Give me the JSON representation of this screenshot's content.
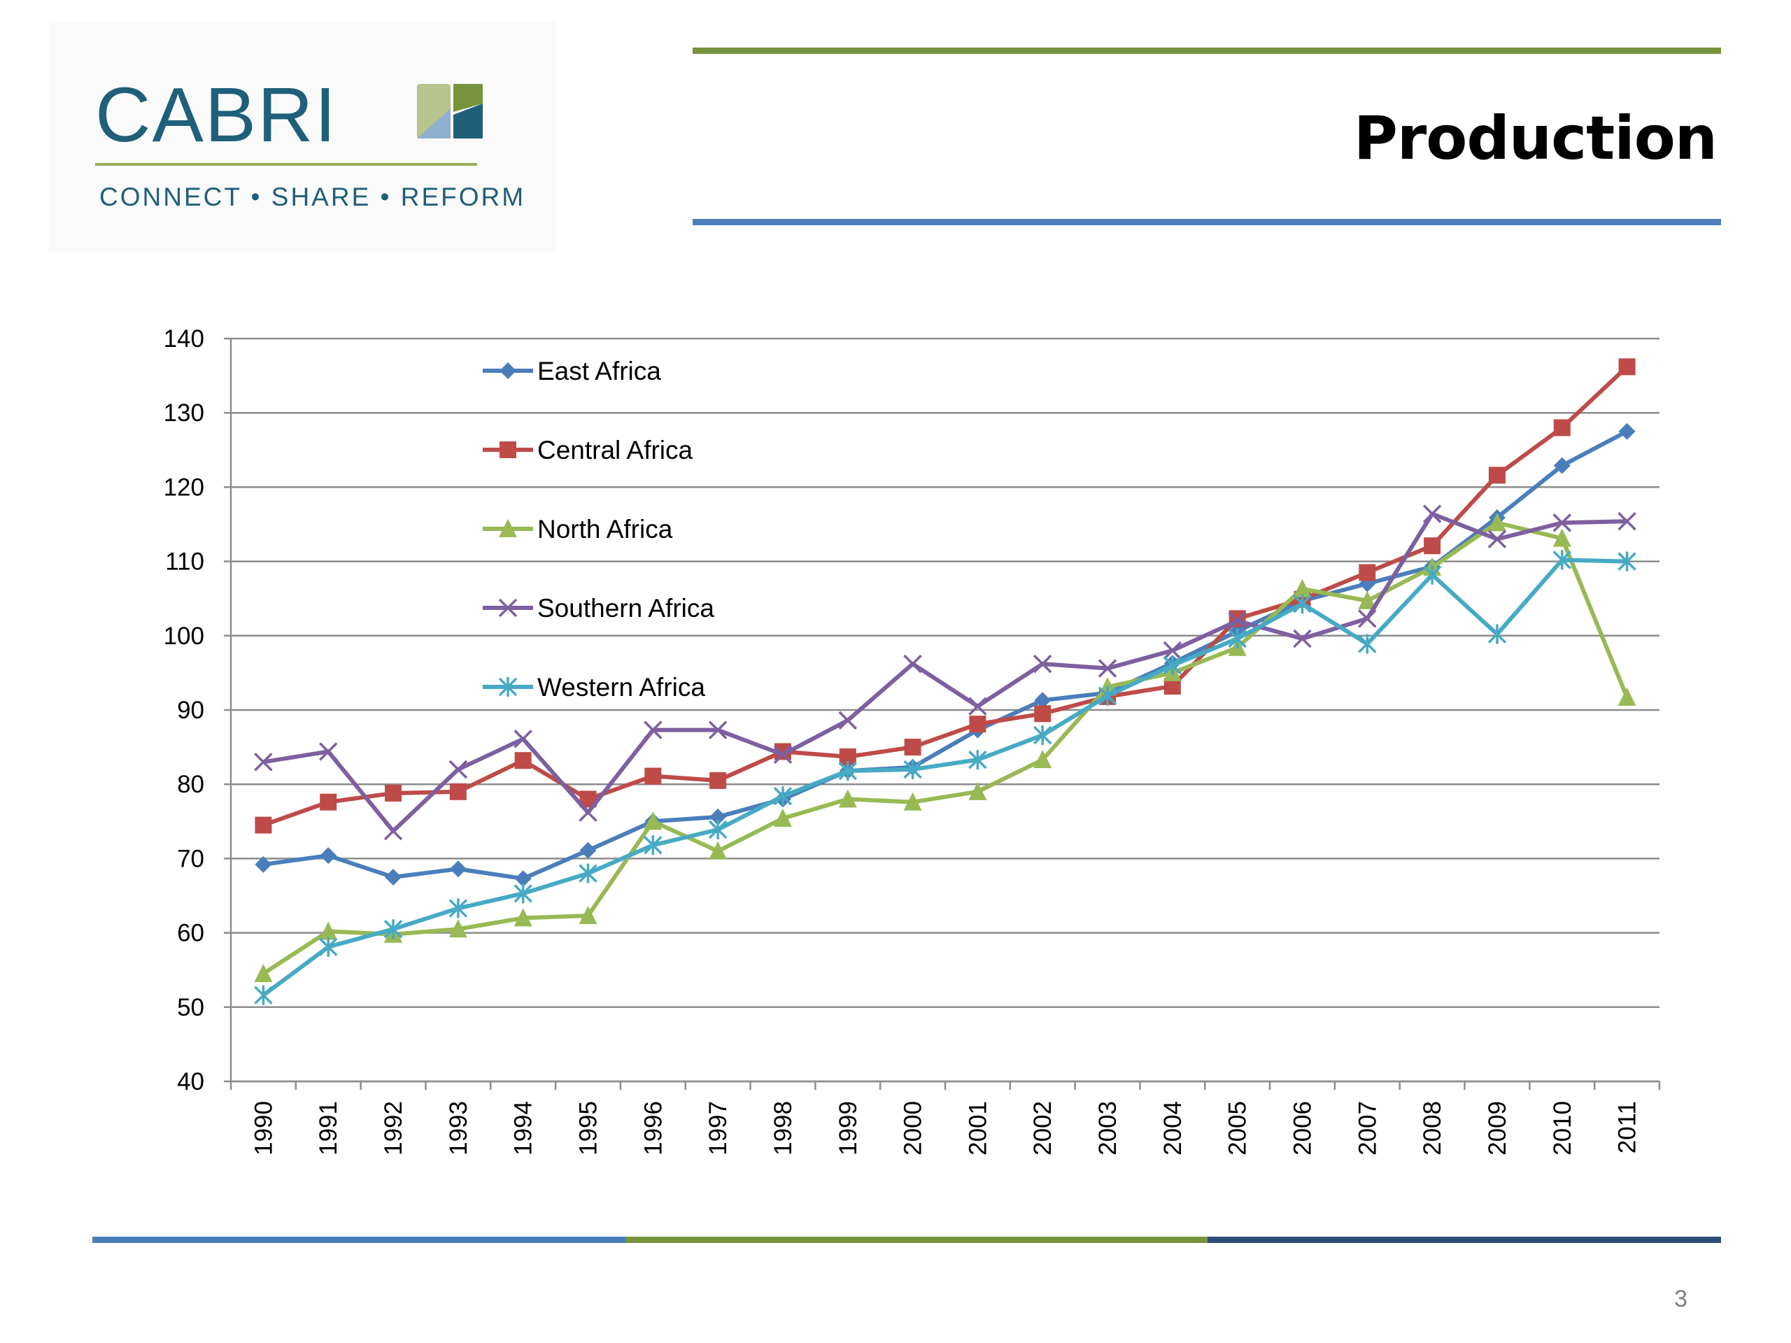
{
  "header": {
    "title": "Production",
    "page_number": "3",
    "logo": {
      "wordmark": "CABRI",
      "tagline": "CONNECT • SHARE • REFORM"
    },
    "colors": {
      "green": "#77933c",
      "blue": "#4a7ebb",
      "navy": "#2c4d75",
      "logo_teal": "#1f5f7a"
    }
  },
  "chart_data": {
    "type": "line",
    "title": "",
    "xlabel": "",
    "ylabel": "",
    "categories": [
      "1990",
      "1991",
      "1992",
      "1993",
      "1994",
      "1995",
      "1996",
      "1997",
      "1998",
      "1999",
      "2000",
      "2001",
      "2002",
      "2003",
      "2004",
      "2005",
      "2006",
      "2007",
      "2008",
      "2009",
      "2010",
      "2011"
    ],
    "ylim": [
      40,
      140
    ],
    "yticks": [
      40,
      50,
      60,
      70,
      80,
      90,
      100,
      110,
      120,
      130,
      140
    ],
    "grid": true,
    "legend_position": "top-left inside",
    "series": [
      {
        "name": "East Africa",
        "color": "#4a7ebb",
        "marker": "diamond",
        "values": [
          69.2,
          70.4,
          67.5,
          68.6,
          67.3,
          71.1,
          75.0,
          75.6,
          78.0,
          81.8,
          82.3,
          87.3,
          91.3,
          92.3,
          96.3,
          100.6,
          104.7,
          107.0,
          109.3,
          115.9,
          122.9,
          127.5
        ]
      },
      {
        "name": "Central Africa",
        "color": "#be4b48",
        "marker": "square",
        "values": [
          74.5,
          77.6,
          78.8,
          79.0,
          83.2,
          78.0,
          81.1,
          80.5,
          84.4,
          83.7,
          85.0,
          88.1,
          89.5,
          91.8,
          93.2,
          102.3,
          104.9,
          108.5,
          112.1,
          121.6,
          128.0,
          136.2
        ]
      },
      {
        "name": "North Africa",
        "color": "#98b954",
        "marker": "triangle",
        "values": [
          54.5,
          60.2,
          59.8,
          60.5,
          62.0,
          62.3,
          75.0,
          71.0,
          75.4,
          78.0,
          77.6,
          79.0,
          83.3,
          93.1,
          95.0,
          98.4,
          106.3,
          104.7,
          109.2,
          115.2,
          113.1,
          91.7
        ]
      },
      {
        "name": "Southern Africa",
        "color": "#7d60a0",
        "marker": "x",
        "values": [
          83.0,
          84.4,
          73.7,
          82.0,
          86.1,
          76.2,
          87.3,
          87.3,
          84.0,
          88.6,
          96.2,
          90.5,
          96.2,
          95.6,
          98.0,
          102.0,
          99.6,
          102.3,
          116.4,
          113.0,
          115.2,
          115.4
        ]
      },
      {
        "name": "Western Africa",
        "color": "#46aac5",
        "marker": "asterisk",
        "values": [
          51.6,
          58.1,
          60.5,
          63.3,
          65.3,
          68.0,
          71.8,
          73.9,
          78.4,
          81.8,
          82.0,
          83.3,
          86.6,
          91.9,
          96.0,
          99.6,
          104.3,
          98.9,
          108.2,
          100.2,
          110.2,
          110.0
        ]
      }
    ]
  }
}
